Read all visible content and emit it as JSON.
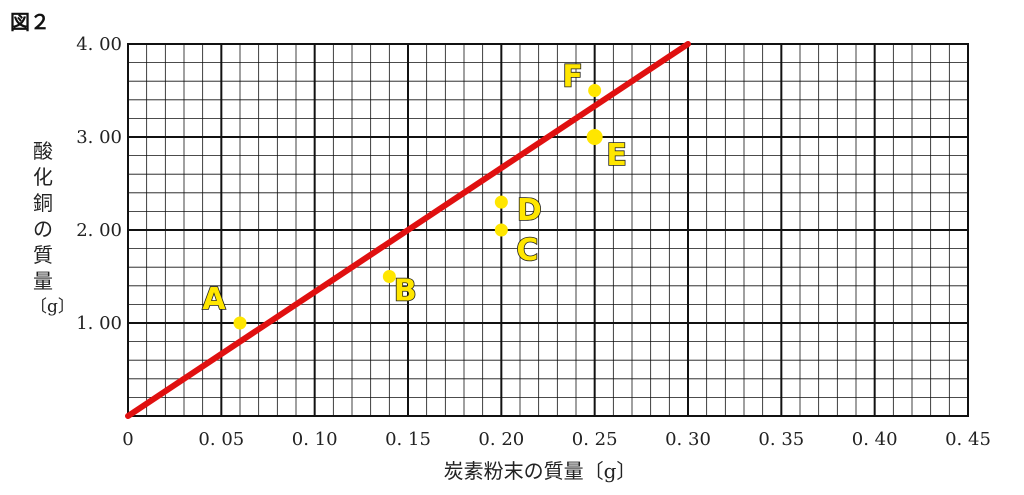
{
  "figure_label": "図２",
  "chart_data": {
    "type": "scatter",
    "title": "",
    "xlabel": "炭素粉末の質量〔g〕",
    "ylabel_chars": [
      "酸",
      "化",
      "銅",
      "の",
      "質",
      "量",
      "〔g〕"
    ],
    "xlim": [
      0,
      0.45
    ],
    "ylim": [
      0,
      4.0
    ],
    "x_ticks": [
      0,
      0.05,
      0.1,
      0.15,
      0.2,
      0.25,
      0.3,
      0.35,
      0.4,
      0.45
    ],
    "x_tick_labels": [
      "0",
      "0. 05",
      "0. 10",
      "0. 15",
      "0. 20",
      "0. 25",
      "0. 30",
      "0. 35",
      "0. 40",
      "0. 45"
    ],
    "y_ticks": [
      1.0,
      2.0,
      3.0,
      4.0
    ],
    "y_tick_labels": [
      "1. 00",
      "2. 00",
      "3. 00",
      "4. 00"
    ],
    "grid": true,
    "points": [
      {
        "label": "A",
        "x": 0.06,
        "y": 1.0
      },
      {
        "label": "B",
        "x": 0.14,
        "y": 1.5
      },
      {
        "label": "C",
        "x": 0.2,
        "y": 2.0
      },
      {
        "label": "D",
        "x": 0.2,
        "y": 2.3
      },
      {
        "label": "E",
        "x": 0.25,
        "y": 3.0
      },
      {
        "label": "F",
        "x": 0.25,
        "y": 3.5
      }
    ],
    "fit_line": {
      "x": [
        0,
        0.3
      ],
      "y": [
        0,
        4.0
      ]
    },
    "colors": {
      "points": "#ffe600",
      "point_label_fill": "#ffe600",
      "point_label_stroke": "#222222",
      "line": "#e01010",
      "grid": "#111111"
    }
  }
}
